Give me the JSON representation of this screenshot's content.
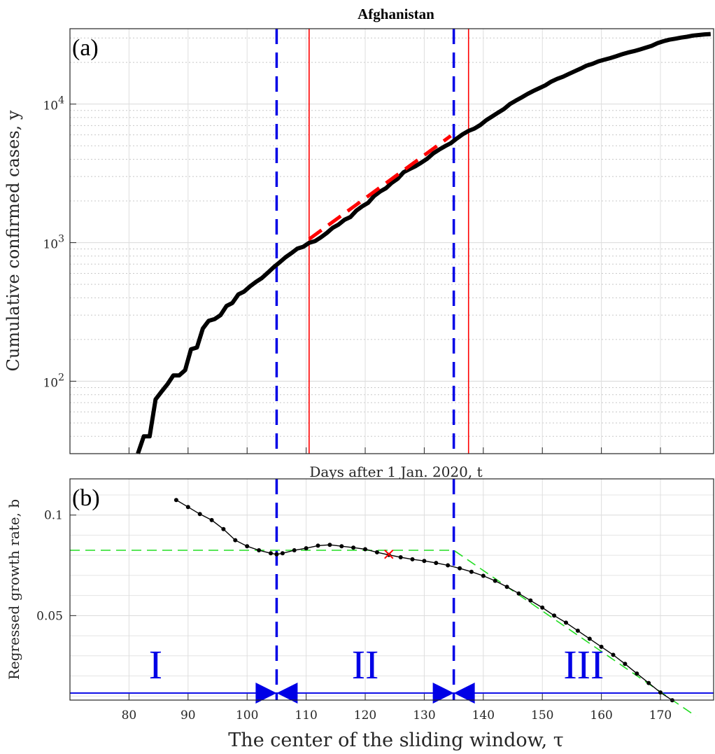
{
  "chart_data": [
    {
      "type": "line",
      "panel": "(a)",
      "title": "Afghanistan",
      "xlabel": "Days after 1 Jan. 2020, t",
      "ylabel": "Cumulative confirmed cases, y",
      "yscale": "log",
      "xlim": [
        70,
        179
      ],
      "ylim": [
        30,
        35000
      ],
      "grid": true,
      "ytick_labels": [
        "10^2",
        "10^3",
        "10^4"
      ],
      "series": [
        {
          "color": "#000000",
          "x": [
            81.5,
            82.5,
            83.5,
            84.5,
            85.5,
            86.5,
            87.5,
            88.5,
            89.5,
            90.5,
            91.5,
            92.5,
            93.5,
            94.5,
            95.5,
            96.5,
            97.5,
            98.5,
            99.5,
            100.5,
            101.5,
            102.5,
            103.5,
            104.5,
            105.5,
            106.5,
            107.5,
            108.5,
            109.5,
            110.5,
            111.5,
            112.5,
            113.5,
            114.5,
            115.5,
            116.5,
            117.5,
            118.5,
            119.5,
            120.5,
            121.5,
            122.5,
            123.5,
            124.5,
            125.5,
            126.5,
            127.5,
            128.5,
            129.5,
            130.5,
            131.5,
            132.5,
            133.5,
            134.5,
            135.5,
            136.5,
            137.5,
            138.5,
            139.5,
            140.5,
            141.5,
            142.5,
            143.5,
            144.5,
            145.5,
            146.5,
            147.5,
            148.5,
            149.5,
            150.5,
            151.5,
            152.5,
            153.5,
            154.5,
            155.5,
            156.5,
            157.5,
            158.5,
            159.5,
            160.5,
            161.5,
            162.5,
            163.5,
            164.5,
            165.5,
            166.5,
            167.5,
            168.5,
            169.5,
            170.5,
            171.5,
            172.5,
            173.5,
            174.5,
            175.5,
            176.5,
            177.5,
            178.5
          ],
          "y": [
            30,
            40,
            40,
            74,
            84,
            95,
            110,
            110,
            120,
            170,
            175,
            240,
            273,
            281,
            300,
            349,
            367,
            423,
            444,
            484,
            521,
            555,
            607,
            665,
            720,
            784,
            840,
            906,
            934,
            996,
            1026,
            1092,
            1176,
            1279,
            1351,
            1463,
            1531,
            1703,
            1828,
            1939,
            2171,
            2335,
            2469,
            2704,
            2894,
            3224,
            3392,
            3563,
            3778,
            4033,
            4402,
            4687,
            4963,
            5226,
            5639,
            6053,
            6402,
            6664,
            7072,
            7653,
            8145,
            8676,
            9216,
            9998,
            10582,
            11173,
            11831,
            12456,
            13036,
            13659,
            14525,
            15205,
            15750,
            16509,
            17267,
            18054,
            18969,
            19551,
            20342,
            20917,
            21459,
            22142,
            22890,
            23546,
            24102,
            24766,
            25527,
            26310,
            27532,
            28424,
            29143,
            29640,
            30175,
            30616,
            31238,
            31507,
            31836,
            32022
          ]
        },
        {
          "color": "#ff0000",
          "style": "dashed",
          "x": [
            110.5,
            134.5
          ],
          "y": [
            1060,
            5900
          ]
        }
      ],
      "vlines_blue_dashed": [
        105,
        135
      ],
      "vlines_red": [
        110.5,
        137.5
      ]
    },
    {
      "type": "line",
      "panel": "(b)",
      "xlabel": "The center of the sliding window, τ",
      "ylabel": "Regressed growth rate, b",
      "xlim": [
        70,
        179
      ],
      "ylim": [
        0.008,
        0.118
      ],
      "xticks": [
        80,
        90,
        100,
        110,
        120,
        130,
        140,
        150,
        160,
        170
      ],
      "ytick_labels": [
        "0.05",
        "0.1"
      ],
      "grid": true,
      "series": [
        {
          "color": "#000000",
          "x": [
            88,
            90,
            92,
            94,
            96,
            98,
            100,
            102,
            104,
            105,
            106,
            108,
            110,
            112,
            114,
            116,
            118,
            120,
            122,
            124,
            126,
            128,
            130,
            132,
            134,
            136,
            138,
            140,
            142,
            144,
            146,
            148,
            150,
            152,
            154,
            156,
            158,
            160,
            162,
            164,
            166,
            168,
            170,
            172
          ],
          "y": [
            0.1075,
            0.104,
            0.1005,
            0.0975,
            0.093,
            0.0875,
            0.0845,
            0.0825,
            0.081,
            0.0805,
            0.081,
            0.0825,
            0.0835,
            0.0848,
            0.0852,
            0.0845,
            0.0838,
            0.083,
            0.0815,
            0.0802,
            0.079,
            0.078,
            0.0772,
            0.0762,
            0.075,
            0.0735,
            0.0718,
            0.0698,
            0.0673,
            0.0643,
            0.061,
            0.0575,
            0.054,
            0.05,
            0.0465,
            0.0425,
            0.0385,
            0.0345,
            0.0305,
            0.026,
            0.0212,
            0.0165,
            0.0118,
            0.0079
          ]
        },
        {
          "color": "#00dd00",
          "style": "dashed",
          "x": [
            70,
            135,
            176
          ],
          "y": [
            0.0825,
            0.0825,
            0.0
          ]
        }
      ],
      "marker_x": {
        "x": 124,
        "y": 0.0805
      },
      "vlines_blue_dashed": [
        105,
        135
      ],
      "baseline_y": 0.0115,
      "phase_labels": [
        "I",
        "II",
        "III"
      ]
    }
  ]
}
